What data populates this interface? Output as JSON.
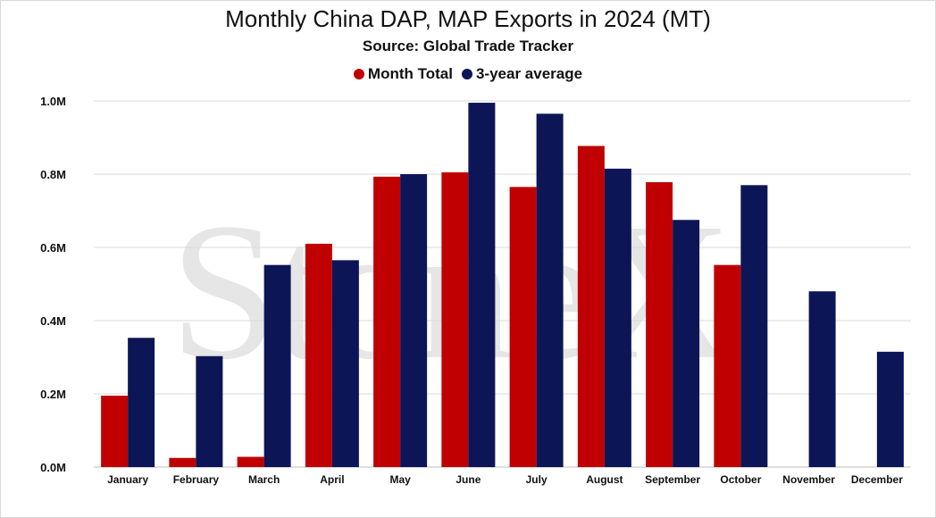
{
  "chart_data": {
    "type": "bar",
    "title": "Monthly China DAP, MAP Exports in 2024 (MT)",
    "subtitle": "Source: Global Trade Tracker",
    "categories": [
      "January",
      "February",
      "March",
      "April",
      "May",
      "June",
      "July",
      "August",
      "September",
      "October",
      "November",
      "December"
    ],
    "series": [
      {
        "name": "Month Total",
        "color": "#c00000",
        "values": [
          195000,
          25000,
          28000,
          610000,
          793000,
          805000,
          765000,
          877000,
          778000,
          552000,
          null,
          null
        ]
      },
      {
        "name": "3-year average",
        "color": "#0c1657",
        "values": [
          353000,
          303000,
          552000,
          565000,
          800000,
          995000,
          965000,
          815000,
          675000,
          770000,
          480000,
          315000
        ]
      }
    ],
    "ylim": [
      0,
      1000000
    ],
    "yticks": [
      0,
      200000,
      400000,
      600000,
      800000,
      1000000
    ],
    "ytick_labels": [
      "0.0M",
      "0.2M",
      "0.4M",
      "0.6M",
      "0.8M",
      "1.0M"
    ],
    "grid": true,
    "legend_position": "top-center"
  },
  "watermark_text": "StoneX"
}
